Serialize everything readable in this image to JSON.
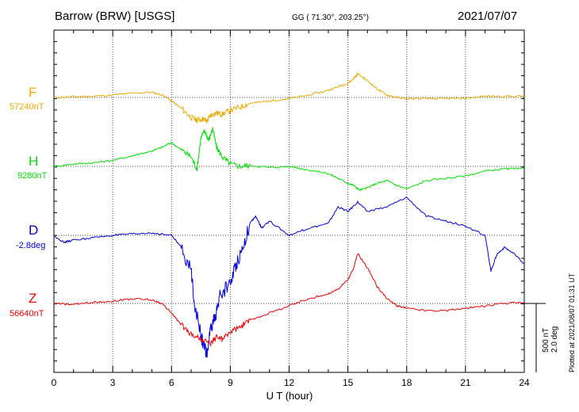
{
  "header": {
    "station": "Barrow (BRW)  [USGS]",
    "coords": "GG ( 71.30°, 203.25°)",
    "date": "2021/07/07"
  },
  "scale_bar": {
    "label1": "500 nT",
    "label2": "2.0 deg"
  },
  "plotted_note": "Plotted at 2021/08/07 01:31 UT",
  "colors": {
    "F": "#f0a800",
    "H": "#00e000",
    "D": "#0000dd",
    "Z": "#ee0000"
  },
  "chart_data": {
    "type": "line",
    "xlabel": "U T (hour)",
    "xlim": [
      0,
      24
    ],
    "xticks": [
      "0",
      "3",
      "6",
      "9",
      "12",
      "15",
      "18",
      "21",
      "24"
    ],
    "grid": true,
    "series": [
      {
        "name": "F",
        "baseline_label": "57240nT",
        "color": "#f0a800",
        "x": [
          0,
          1,
          2,
          3,
          4,
          5,
          5.6,
          6,
          6.5,
          7,
          7.3,
          7.6,
          7.8,
          8,
          8.3,
          8.6,
          9,
          9.5,
          10,
          11,
          12,
          13,
          14,
          14.5,
          15,
          15.3,
          15.5,
          16,
          16.5,
          17,
          17.5,
          18,
          19,
          20,
          21,
          22,
          23,
          24
        ],
        "y": [
          0,
          3,
          5,
          10,
          18,
          22,
          8,
          -15,
          -45,
          -85,
          -95,
          -90,
          -100,
          -75,
          -65,
          -70,
          -55,
          -40,
          -25,
          -15,
          -5,
          10,
          30,
          45,
          60,
          80,
          100,
          70,
          35,
          10,
          0,
          -5,
          -5,
          -5,
          -3,
          5,
          5,
          5
        ]
      },
      {
        "name": "H",
        "baseline_label": "9280nT",
        "color": "#00e000",
        "x": [
          0,
          1,
          2,
          3,
          4,
          5,
          5.5,
          6,
          6.5,
          7,
          7.3,
          7.5,
          7.7,
          7.9,
          8.1,
          8.3,
          8.6,
          9,
          9.5,
          10,
          11,
          12,
          13,
          14,
          14.5,
          15,
          15.3,
          15.6,
          16,
          16.5,
          17,
          17.5,
          18,
          19,
          20,
          21,
          22,
          23,
          24
        ],
        "y": [
          0,
          10,
          15,
          25,
          45,
          65,
          80,
          100,
          70,
          40,
          -10,
          120,
          150,
          110,
          160,
          80,
          40,
          10,
          0,
          5,
          -5,
          0,
          -15,
          -30,
          -50,
          -70,
          -80,
          -100,
          -90,
          -70,
          -60,
          -80,
          -95,
          -60,
          -50,
          -40,
          -20,
          -10,
          -10
        ]
      },
      {
        "name": "D",
        "baseline_label": "-2.8deg",
        "color": "#0000dd",
        "x": [
          0,
          0.5,
          1,
          2,
          3,
          4,
          5,
          6,
          6.5,
          7,
          7.2,
          7.5,
          7.7,
          7.8,
          8,
          8.2,
          8.5,
          9,
          9.3,
          9.6,
          10,
          10.3,
          10.6,
          11,
          12,
          13,
          14,
          14.5,
          15,
          15.5,
          16,
          17,
          18,
          19,
          20,
          21,
          22,
          22.3,
          22.6,
          23,
          23.5,
          24
        ],
        "y": [
          0,
          -30,
          -20,
          -10,
          0,
          5,
          10,
          0,
          -50,
          -150,
          -300,
          -420,
          -480,
          -500,
          -400,
          -350,
          -250,
          -200,
          -120,
          -60,
          50,
          80,
          30,
          60,
          0,
          30,
          50,
          120,
          100,
          140,
          100,
          120,
          160,
          80,
          60,
          40,
          0,
          -150,
          -80,
          -50,
          -80,
          -120
        ]
      },
      {
        "name": "Z",
        "baseline_label": "56640nT",
        "color": "#ee0000",
        "x": [
          0,
          1,
          2,
          3,
          4,
          5,
          5.5,
          6,
          6.5,
          7,
          7.5,
          8,
          8.3,
          8.6,
          9,
          9.5,
          10,
          11,
          12,
          13,
          14,
          14.5,
          15,
          15.3,
          15.5,
          16,
          16.5,
          17,
          17.5,
          18,
          19,
          20,
          21,
          22,
          23,
          24
        ],
        "y": [
          0,
          -5,
          5,
          10,
          20,
          15,
          0,
          -40,
          -90,
          -130,
          -150,
          -170,
          -140,
          -150,
          -120,
          -100,
          -70,
          -40,
          -10,
          20,
          40,
          60,
          100,
          150,
          210,
          150,
          70,
          20,
          -10,
          -20,
          -30,
          -30,
          -20,
          -10,
          0,
          5
        ]
      }
    ]
  }
}
